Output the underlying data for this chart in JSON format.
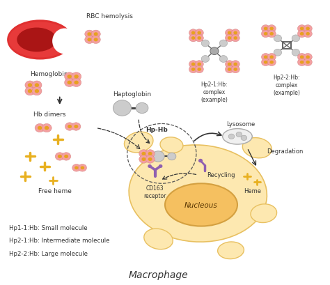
{
  "bg_color": "#ffffff",
  "rbc_color": "#cc2222",
  "rbc_gradient_inner": "#aa1111",
  "hb_pink": "#f4a0a0",
  "hb_orange": "#e8a020",
  "gray_light": "#cccccc",
  "gray_mid": "#aaaaaa",
  "gray_dark": "#666666",
  "macrophage_color": "#fde8b0",
  "macrophage_border": "#e8c060",
  "nucleus_color": "#f5c060",
  "nucleus_border": "#d4a040",
  "purple_color": "#9060b0",
  "yellow_gold": "#e8b020",
  "text_color": "#333333",
  "labels": {
    "rbc": "RBC hemolysis",
    "hemoglobin": "Hemoglobin",
    "hb_dimers": "Hb dimers",
    "free_heme": "Free heme",
    "haptoglobin": "Haptoglobin",
    "hp_hb": "Hp-Hb",
    "cd163": "CD163\nreceptor",
    "lysosome": "Lysosome",
    "degradation": "Degradation",
    "recycling": "Recycling",
    "heme": "Heme",
    "nucleous": "Nucleous",
    "macrophage": "Macrophage",
    "hp21_complex": "Hp2-1:Hb:\ncomplex\n(example)",
    "hp22_complex": "Hp2-2:Hb:\ncomplex\n(example)",
    "legend1": "Hp1-1:Hb: Small molecule",
    "legend2": "Hp2-1:Hb: Intermediate molecule",
    "legend3": "Hp2-2:Hb: Large molecule"
  }
}
